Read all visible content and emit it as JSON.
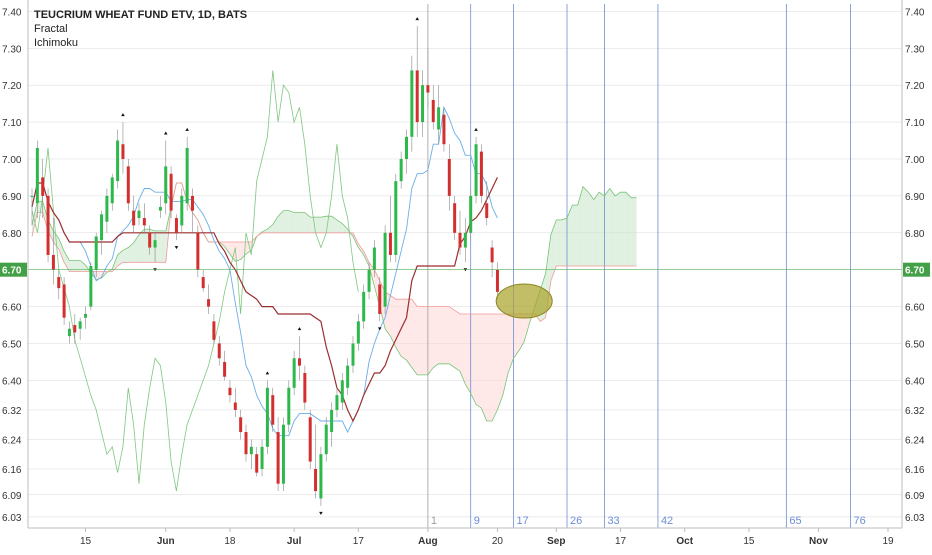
{
  "chart_data": {
    "type": "candlestick",
    "title": "TEUCRIUM WHEAT FUND ETV, 1D, BATS",
    "indicators": [
      "Fractal",
      "Ichimoku"
    ],
    "current_price_label": "6.70",
    "y_ticks": [
      "7.40",
      "7.30",
      "7.20",
      "7.10",
      "7.00",
      "6.90",
      "6.80",
      "6.70",
      "6.60",
      "6.50",
      "6.40",
      "6.32",
      "6.24",
      "6.16",
      "6.09",
      "6.03"
    ],
    "ylim": [
      6.0,
      7.42
    ],
    "x_ticks": [
      "15",
      "Jun",
      "18",
      "Jul",
      "17",
      "Aug",
      "20",
      "Sep",
      "17",
      "Oct",
      "15",
      "Nov",
      "19"
    ],
    "x_tick_idx": [
      10,
      25,
      37,
      49,
      61,
      74,
      87,
      98,
      110,
      122,
      134,
      147,
      160
    ],
    "vlines": [
      {
        "idx": 74,
        "label": "1",
        "color": "#9e9e9e"
      },
      {
        "idx": 82,
        "label": "9",
        "color": "#6c8ed6"
      },
      {
        "idx": 90,
        "label": "17",
        "color": "#6c8ed6"
      },
      {
        "idx": 100,
        "label": "26",
        "color": "#6c8ed6"
      },
      {
        "idx": 107,
        "label": "33",
        "color": "#6c8ed6"
      },
      {
        "idx": 117,
        "label": "42",
        "color": "#6c8ed6"
      },
      {
        "idx": 141,
        "label": "65",
        "color": "#6c8ed6"
      },
      {
        "idx": 153,
        "label": "76",
        "color": "#6c8ed6"
      }
    ],
    "candles": [
      [
        6.9,
        6.92,
        6.82,
        6.9
      ],
      [
        6.88,
        7.05,
        6.84,
        7.03
      ],
      [
        6.95,
        7.0,
        6.84,
        6.9
      ],
      [
        6.9,
        6.92,
        6.72,
        6.74
      ],
      [
        6.74,
        6.84,
        6.66,
        6.7
      ],
      [
        6.68,
        6.7,
        6.62,
        6.65
      ],
      [
        6.66,
        6.68,
        6.55,
        6.57
      ],
      [
        6.52,
        6.56,
        6.5,
        6.54
      ],
      [
        6.55,
        6.58,
        6.5,
        6.53
      ],
      [
        6.54,
        6.57,
        6.51,
        6.56
      ],
      [
        6.57,
        6.6,
        6.54,
        6.58
      ],
      [
        6.6,
        6.72,
        6.59,
        6.71
      ],
      [
        6.7,
        6.8,
        6.68,
        6.79
      ],
      [
        6.78,
        6.86,
        6.74,
        6.85
      ],
      [
        6.83,
        6.92,
        6.8,
        6.9
      ],
      [
        6.88,
        6.96,
        6.86,
        6.95
      ],
      [
        6.94,
        7.08,
        6.92,
        7.05
      ],
      [
        7.04,
        7.1,
        6.96,
        7.0
      ],
      [
        6.98,
        7.0,
        6.86,
        6.88
      ],
      [
        6.86,
        6.9,
        6.8,
        6.82
      ],
      [
        6.84,
        6.88,
        6.82,
        6.86
      ],
      [
        6.84,
        6.88,
        6.8,
        6.82
      ],
      [
        6.8,
        6.82,
        6.74,
        6.76
      ],
      [
        6.76,
        6.8,
        6.72,
        6.78
      ],
      [
        6.86,
        6.9,
        6.84,
        6.87
      ],
      [
        6.88,
        7.05,
        6.85,
        6.98
      ],
      [
        6.96,
        6.98,
        6.84,
        6.86
      ],
      [
        6.84,
        6.85,
        6.78,
        6.8
      ],
      [
        6.82,
        6.92,
        6.8,
        6.9
      ],
      [
        6.88,
        7.06,
        6.86,
        7.03
      ],
      [
        6.9,
        6.92,
        6.8,
        6.86
      ],
      [
        6.8,
        6.82,
        6.68,
        6.7
      ],
      [
        6.68,
        6.7,
        6.64,
        6.65
      ],
      [
        6.62,
        6.66,
        6.58,
        6.6
      ],
      [
        6.56,
        6.58,
        6.5,
        6.51
      ],
      [
        6.5,
        6.52,
        6.44,
        6.46
      ],
      [
        6.45,
        6.48,
        6.4,
        6.41
      ],
      [
        6.38,
        6.4,
        6.34,
        6.36
      ],
      [
        6.34,
        6.38,
        6.3,
        6.32
      ],
      [
        6.3,
        6.32,
        6.24,
        6.26
      ],
      [
        6.26,
        6.28,
        6.18,
        6.2
      ],
      [
        6.2,
        6.24,
        6.16,
        6.22
      ],
      [
        6.2,
        6.22,
        6.14,
        6.15
      ],
      [
        6.16,
        6.24,
        6.14,
        6.22
      ],
      [
        6.22,
        6.4,
        6.2,
        6.38
      ],
      [
        6.36,
        6.38,
        6.26,
        6.28
      ],
      [
        6.26,
        6.3,
        6.1,
        6.12
      ],
      [
        6.12,
        6.3,
        6.1,
        6.28
      ],
      [
        6.28,
        6.4,
        6.26,
        6.38
      ],
      [
        6.38,
        6.48,
        6.36,
        6.46
      ],
      [
        6.46,
        6.52,
        6.4,
        6.44
      ],
      [
        6.42,
        6.44,
        6.32,
        6.34
      ],
      [
        6.3,
        6.32,
        6.16,
        6.18
      ],
      [
        6.16,
        6.28,
        6.08,
        6.1
      ],
      [
        6.08,
        6.22,
        6.06,
        6.2
      ],
      [
        6.2,
        6.3,
        6.18,
        6.28
      ],
      [
        6.26,
        6.34,
        6.22,
        6.32
      ],
      [
        6.32,
        6.38,
        6.3,
        6.36
      ],
      [
        6.34,
        6.42,
        6.32,
        6.4
      ],
      [
        6.38,
        6.46,
        6.36,
        6.44
      ],
      [
        6.44,
        6.52,
        6.42,
        6.5
      ],
      [
        6.5,
        6.58,
        6.48,
        6.56
      ],
      [
        6.56,
        6.66,
        6.54,
        6.64
      ],
      [
        6.64,
        6.72,
        6.62,
        6.7
      ],
      [
        6.7,
        6.78,
        6.68,
        6.76
      ],
      [
        6.66,
        6.68,
        6.56,
        6.58
      ],
      [
        6.6,
        6.82,
        6.58,
        6.8
      ],
      [
        6.8,
        6.9,
        6.72,
        6.74
      ],
      [
        6.74,
        6.96,
        6.72,
        6.94
      ],
      [
        6.94,
        7.02,
        6.92,
        7.0
      ],
      [
        7.0,
        7.08,
        6.96,
        7.06
      ],
      [
        7.06,
        7.28,
        7.02,
        7.24
      ],
      [
        7.24,
        7.36,
        7.06,
        7.1
      ],
      [
        7.1,
        7.24,
        7.06,
        7.2
      ],
      [
        7.2,
        7.3,
        7.14,
        7.18
      ],
      [
        7.16,
        7.2,
        7.08,
        7.1
      ],
      [
        7.08,
        7.2,
        7.04,
        7.14
      ],
      [
        7.12,
        7.14,
        7.02,
        7.04
      ],
      [
        7.0,
        7.04,
        6.86,
        6.9
      ],
      [
        6.88,
        6.9,
        6.78,
        6.8
      ],
      [
        6.8,
        6.86,
        6.74,
        6.76
      ],
      [
        6.76,
        6.84,
        6.72,
        6.8
      ],
      [
        6.8,
        6.92,
        6.78,
        6.9
      ],
      [
        6.9,
        7.06,
        6.88,
        7.04
      ],
      [
        7.02,
        7.04,
        6.88,
        6.9
      ],
      [
        6.88,
        6.94,
        6.82,
        6.84
      ],
      [
        6.76,
        6.78,
        6.68,
        6.72
      ],
      [
        6.7,
        6.72,
        6.62,
        6.64
      ]
    ],
    "forecast_area": {
      "idx": 92,
      "price": 6.615,
      "label": ""
    },
    "current_price": 6.7,
    "colors": {
      "up": "#2db84b",
      "down": "#d32f2f",
      "tenkan": "#6aaee8",
      "kijun": "#9b2f2f",
      "chikou": "#7fc77f",
      "span_a": "#76c476",
      "span_b": "#ef9a9a",
      "cloud_bull": "#c8e6c9",
      "cloud_bear": "#ffd5d5",
      "price_line": "#57b058",
      "price_box": "#43a047",
      "grid": "#d9d9d9",
      "axis_text": "#333333"
    }
  }
}
